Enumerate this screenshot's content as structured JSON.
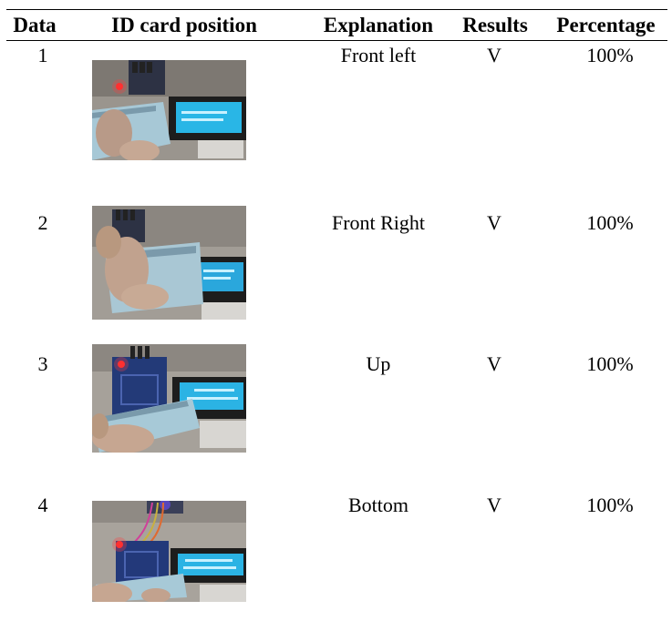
{
  "table": {
    "headers": {
      "data": "Data",
      "id_card_position": "ID card position",
      "explanation": "Explanation",
      "results": "Results",
      "percentage": "Percentage"
    },
    "rows": [
      {
        "data": "1",
        "explanation": "Front left",
        "results": "V",
        "percentage": "100%",
        "photo": "rfid-reader-id-card-front-left-photo"
      },
      {
        "data": "2",
        "explanation": "Front Right",
        "results": "V",
        "percentage": "100%",
        "photo": "rfid-reader-id-card-front-right-photo"
      },
      {
        "data": "3",
        "explanation": "Up",
        "results": "V",
        "percentage": "100%",
        "photo": "rfid-reader-id-card-up-photo"
      },
      {
        "data": "4",
        "explanation": "Bottom",
        "results": "V",
        "percentage": "100%",
        "photo": "rfid-reader-id-card-bottom-photo"
      }
    ]
  }
}
